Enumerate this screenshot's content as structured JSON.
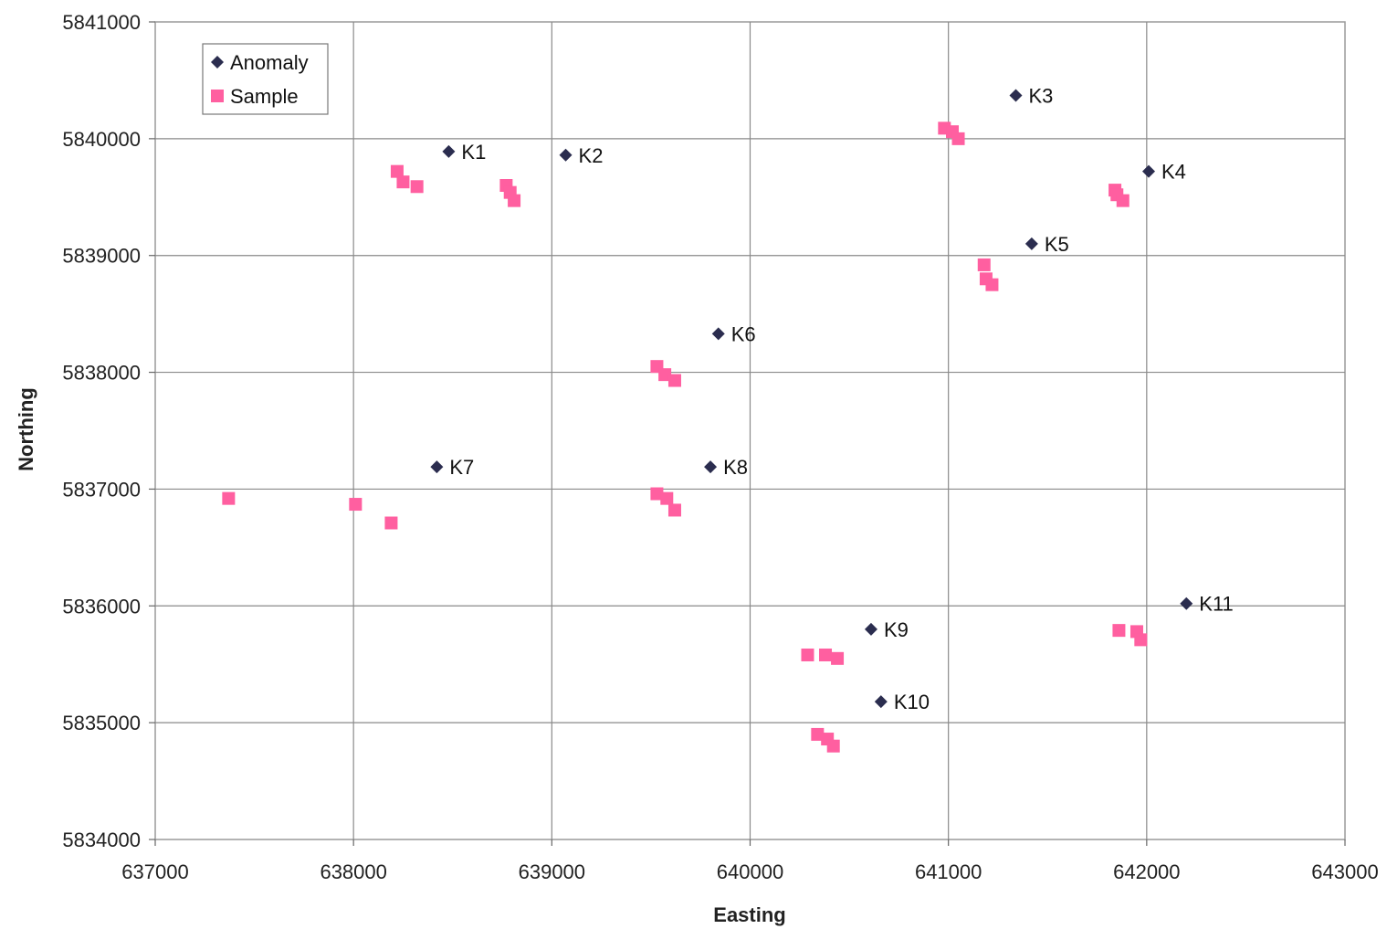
{
  "chart_data": {
    "type": "scatter",
    "xlabel": "Easting",
    "ylabel": "Northing",
    "xlim": [
      637000,
      643000
    ],
    "ylim": [
      5834000,
      5841000
    ],
    "xticks": [
      637000,
      638000,
      639000,
      640000,
      641000,
      642000,
      643000
    ],
    "yticks": [
      5834000,
      5835000,
      5836000,
      5837000,
      5838000,
      5839000,
      5840000,
      5841000
    ],
    "grid": true,
    "legend_position": "top-left",
    "series": [
      {
        "name": "Anomaly",
        "marker": "diamond",
        "color": "#2b2d4f",
        "points": [
          {
            "label": "K1",
            "x": 638480,
            "y": 5839890
          },
          {
            "label": "K2",
            "x": 639070,
            "y": 5839860
          },
          {
            "label": "K3",
            "x": 641340,
            "y": 5840370
          },
          {
            "label": "K4",
            "x": 642010,
            "y": 5839720
          },
          {
            "label": "K5",
            "x": 641420,
            "y": 5839100
          },
          {
            "label": "K6",
            "x": 639840,
            "y": 5838330
          },
          {
            "label": "K7",
            "x": 638420,
            "y": 5837190
          },
          {
            "label": "K8",
            "x": 639800,
            "y": 5837190
          },
          {
            "label": "K9",
            "x": 640610,
            "y": 5835800
          },
          {
            "label": "K10",
            "x": 640660,
            "y": 5835180
          },
          {
            "label": "K11",
            "x": 642200,
            "y": 5836020
          }
        ]
      },
      {
        "name": "Sample",
        "marker": "square",
        "color": "#ff5fa0",
        "points": [
          {
            "x": 637370,
            "y": 5836920
          },
          {
            "x": 638010,
            "y": 5836870
          },
          {
            "x": 638190,
            "y": 5836710
          },
          {
            "x": 638220,
            "y": 5839720
          },
          {
            "x": 638250,
            "y": 5839630
          },
          {
            "x": 638320,
            "y": 5839590
          },
          {
            "x": 638770,
            "y": 5839600
          },
          {
            "x": 638790,
            "y": 5839540
          },
          {
            "x": 638810,
            "y": 5839470
          },
          {
            "x": 639530,
            "y": 5838050
          },
          {
            "x": 639570,
            "y": 5837980
          },
          {
            "x": 639620,
            "y": 5837930
          },
          {
            "x": 639530,
            "y": 5836960
          },
          {
            "x": 639580,
            "y": 5836920
          },
          {
            "x": 639620,
            "y": 5836820
          },
          {
            "x": 640980,
            "y": 5840090
          },
          {
            "x": 641020,
            "y": 5840060
          },
          {
            "x": 641050,
            "y": 5840000
          },
          {
            "x": 641180,
            "y": 5838920
          },
          {
            "x": 641190,
            "y": 5838800
          },
          {
            "x": 641220,
            "y": 5838750
          },
          {
            "x": 641840,
            "y": 5839560
          },
          {
            "x": 641850,
            "y": 5839520
          },
          {
            "x": 641880,
            "y": 5839470
          },
          {
            "x": 640290,
            "y": 5835580
          },
          {
            "x": 640380,
            "y": 5835580
          },
          {
            "x": 640440,
            "y": 5835550
          },
          {
            "x": 640340,
            "y": 5834900
          },
          {
            "x": 640390,
            "y": 5834860
          },
          {
            "x": 640420,
            "y": 5834800
          },
          {
            "x": 641860,
            "y": 5835790
          },
          {
            "x": 641950,
            "y": 5835780
          },
          {
            "x": 641970,
            "y": 5835710
          }
        ]
      }
    ]
  }
}
